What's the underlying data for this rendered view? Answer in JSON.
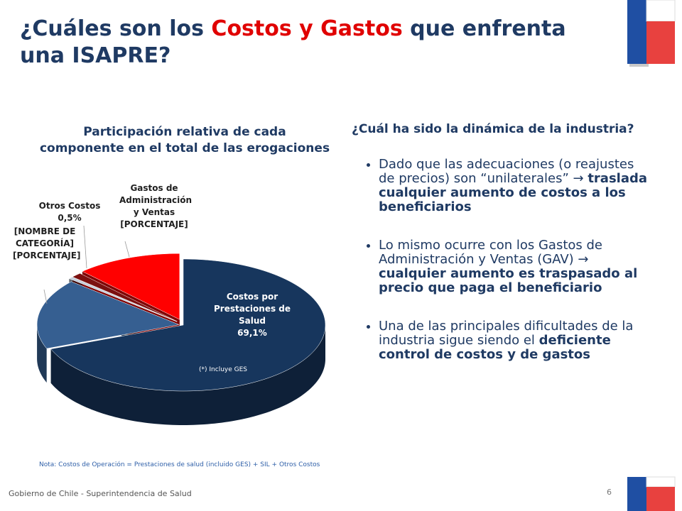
{
  "header": {
    "title_parts": [
      "¿Cuáles son los ",
      "Costos y Gastos",
      " que enfrenta una ISAPRE?"
    ]
  },
  "chart_data": {
    "type": "pie",
    "title": "Participación relativa de cada componente en el total de las erogaciones",
    "categories": [
      "Costos por Prestaciones de Salud",
      "[NOMBRE DE CATEGORÍA]",
      "Otros Costos",
      null,
      "Gastos de Administración y Ventas"
    ],
    "values": [
      69.1,
      17.2,
      0.5,
      1.2,
      12
    ],
    "value_labels": [
      "69,1%",
      "[PORCENTAJE]",
      "0,5%",
      null,
      "[PORCENTAJE]"
    ],
    "colors": [
      "#17365d",
      "#365f91",
      "#c6cfdc",
      "#7b1010",
      "#ff0000"
    ],
    "annotation": "(*) Incluye GES",
    "note": "Nota: Costos de Operación = Prestaciones de salud (incluido GES) + SIL + Otros Costos"
  },
  "panel": {
    "question": "¿Cuál ha sido la dinámica de la industria?",
    "bullets": [
      {
        "normal": "Dado que las adecuaciones (o reajustes de precios) son “unilaterales” → ",
        "bold": "traslada cualquier aumento de costos a los beneficiarios"
      },
      {
        "normal": "Lo mismo ocurre con los Gastos de Administración y Ventas (GAV) → ",
        "bold": "cualquier aumento es traspasado al precio que paga el beneficiario"
      },
      {
        "normal": "Una de las principales dificultades de la industria sigue siendo el ",
        "bold": "deficiente control de costos y de gastos"
      }
    ]
  },
  "footer": {
    "text": "Gobierno de Chile - Superintendencia de Salud",
    "page": "6"
  }
}
